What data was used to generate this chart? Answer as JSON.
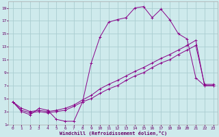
{
  "xlabel": "Windchill (Refroidissement éolien,°C)",
  "background_color": "#ceeaec",
  "grid_color": "#aacdd0",
  "line_color": "#880088",
  "xlim": [
    -0.5,
    23.5
  ],
  "ylim": [
    1,
    20
  ],
  "xticks": [
    0,
    1,
    2,
    3,
    4,
    5,
    6,
    7,
    8,
    9,
    10,
    11,
    12,
    13,
    14,
    15,
    16,
    17,
    18,
    19,
    20,
    21,
    22,
    23
  ],
  "yticks": [
    1,
    3,
    5,
    7,
    9,
    11,
    13,
    15,
    17,
    19
  ],
  "series": [
    {
      "x": [
        0,
        1,
        2,
        3,
        4,
        5,
        6,
        7,
        8,
        9,
        10,
        11,
        12,
        13,
        14,
        15,
        16,
        17,
        18,
        19,
        20,
        21,
        22,
        23
      ],
      "y": [
        4.5,
        3.0,
        2.5,
        3.5,
        3.2,
        1.8,
        1.5,
        1.5,
        4.5,
        10.5,
        14.5,
        16.8,
        17.2,
        17.5,
        19.0,
        19.2,
        17.5,
        18.8,
        17.2,
        15.0,
        14.2,
        8.2,
        7.0,
        7.0
      ]
    },
    {
      "x": [
        0,
        1,
        2,
        3,
        4,
        5,
        6,
        7,
        8,
        9,
        10,
        11,
        12,
        13,
        14,
        15,
        16,
        17,
        18,
        19,
        20,
        21,
        22,
        23
      ],
      "y": [
        4.5,
        3.5,
        3.0,
        3.2,
        3.0,
        3.2,
        3.5,
        4.0,
        4.8,
        5.5,
        6.5,
        7.2,
        7.8,
        8.5,
        9.2,
        9.8,
        10.5,
        11.2,
        11.8,
        12.5,
        13.2,
        14.0,
        7.0,
        7.0
      ]
    },
    {
      "x": [
        0,
        1,
        2,
        3,
        4,
        5,
        6,
        7,
        8,
        9,
        10,
        11,
        12,
        13,
        14,
        15,
        16,
        17,
        18,
        19,
        20,
        21,
        22,
        23
      ],
      "y": [
        4.5,
        3.2,
        2.8,
        3.0,
        2.8,
        3.0,
        3.2,
        3.8,
        4.5,
        5.0,
        5.8,
        6.5,
        7.0,
        7.8,
        8.5,
        9.0,
        9.8,
        10.5,
        11.0,
        11.8,
        12.5,
        13.2,
        7.2,
        7.2
      ]
    }
  ]
}
